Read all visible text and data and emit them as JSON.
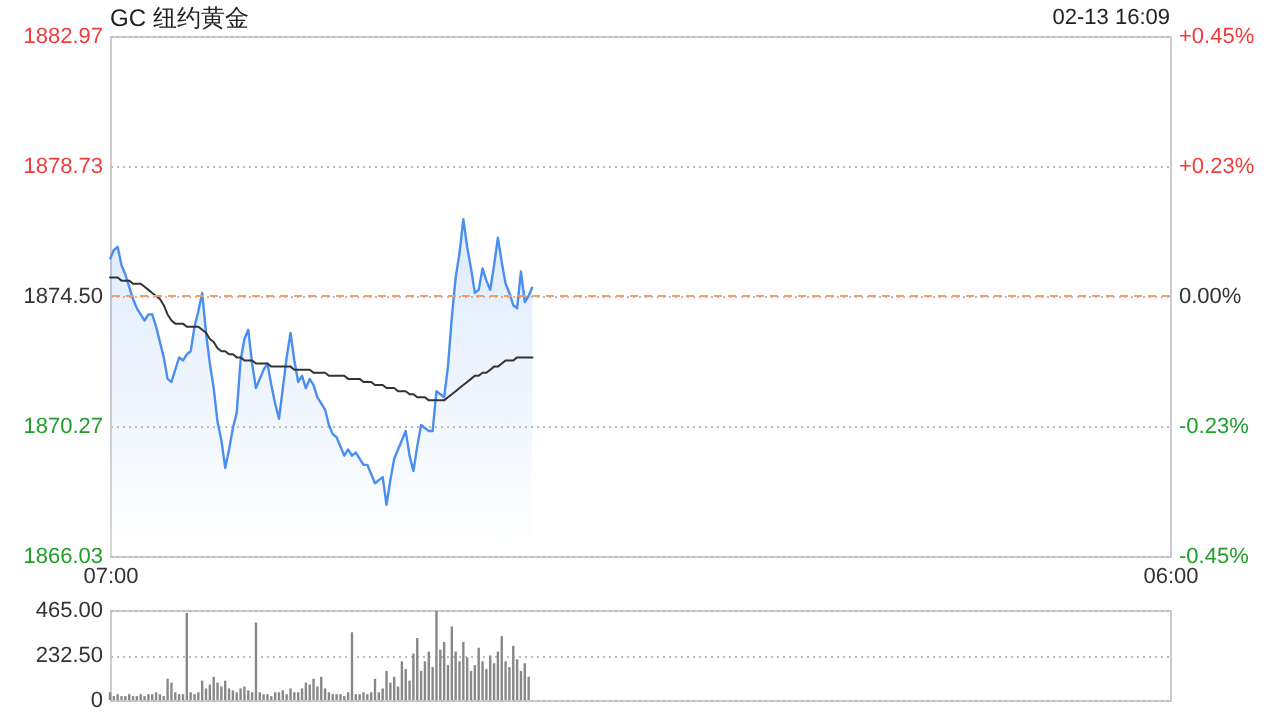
{
  "chart_data": [
    {
      "type": "area",
      "title": "GC 纽约黄金",
      "annotations": [
        "02-13 16:09"
      ],
      "categories": [
        "07:00",
        null,
        null,
        null,
        null,
        null,
        null,
        null,
        null,
        null,
        null,
        null,
        null,
        null,
        null,
        null,
        null,
        null,
        null,
        null,
        null,
        null,
        null,
        null,
        null,
        null,
        null,
        null,
        null,
        null,
        null,
        null,
        null,
        null,
        null,
        null,
        null,
        null,
        null,
        null,
        null,
        null,
        null,
        null,
        null,
        null,
        null,
        null,
        null,
        null,
        null,
        null,
        null,
        null,
        null,
        null,
        null,
        null,
        null,
        null,
        null,
        null,
        null,
        null,
        null,
        null,
        null,
        null,
        null,
        null,
        null,
        null,
        null,
        null,
        null,
        null,
        null,
        null,
        null,
        null,
        null,
        null,
        null,
        null,
        null,
        null,
        null,
        null,
        null,
        null,
        null,
        null,
        null,
        null,
        null,
        null,
        null,
        null,
        null,
        null,
        null,
        null,
        null,
        null,
        null,
        null,
        null,
        null,
        null,
        null,
        null,
        null,
        null,
        null,
        null,
        null,
        null,
        null,
        null,
        null,
        null,
        null,
        null,
        null,
        null,
        null,
        null,
        null,
        null,
        null,
        null,
        null,
        null,
        null,
        null,
        null,
        null,
        null,
        null,
        null,
        null,
        null,
        null,
        null,
        null,
        null,
        null,
        null,
        null,
        null,
        null,
        null,
        null,
        null,
        null,
        null,
        null,
        null,
        null,
        null,
        null,
        null,
        null,
        null,
        null,
        null,
        null,
        null,
        null,
        null,
        null,
        null,
        null,
        null,
        null,
        null,
        null,
        null,
        null,
        null,
        null,
        null,
        null,
        null,
        null,
        null,
        null,
        null,
        null,
        null,
        null,
        null,
        null,
        null,
        null,
        null,
        null,
        null,
        null,
        null,
        null,
        null,
        null,
        null,
        null,
        null,
        null,
        null,
        null,
        null,
        null,
        null,
        null,
        null,
        null,
        null,
        null,
        null,
        null,
        null,
        null,
        null,
        null,
        null,
        null,
        null,
        null,
        null,
        null,
        null,
        null,
        null,
        null,
        null,
        null,
        null,
        null,
        null,
        null,
        null,
        null,
        null,
        null,
        null,
        null,
        null,
        null,
        null,
        null,
        null,
        null,
        null,
        null,
        null,
        null,
        null,
        null,
        null,
        null,
        null,
        null,
        null,
        null,
        null,
        null,
        null,
        null,
        null,
        null,
        null,
        null,
        null,
        null,
        null,
        null,
        null,
        "06:00"
      ],
      "ylim": [
        1866.03,
        1882.97
      ],
      "yticks": [
        1866.03,
        1870.27,
        {
          "value": 1874.5,
          "label": "1874.50"
        },
        1878.73,
        1882.97
      ],
      "y2lim": [
        -0.45,
        0.45
      ],
      "y2ticks": [
        {
          "value": -0.45,
          "label": "-0.45%"
        },
        {
          "value": -0.225,
          "label": "-0.23%"
        },
        {
          "value": 0,
          "label": "0.00%"
        },
        {
          "value": 0.225,
          "label": "+0.23%"
        },
        {
          "value": 0.45,
          "label": "+0.45%"
        }
      ],
      "grid": "y",
      "ref_lines": [
        {
          "axis": "y2",
          "value": 0,
          "color": "#f0a070",
          "line_style": "dashed"
        }
      ],
      "series": [
        {
          "color": "#4a8ef0",
          "values": [
            1875.7,
            1876.0,
            1876.1,
            1875.5,
            1875.2,
            1874.8,
            1874.4,
            1874.1,
            1873.9,
            1873.7,
            1873.9,
            1873.9,
            1873.5,
            1873.0,
            1872.5,
            1871.8,
            1871.7,
            1872.1,
            1872.5,
            1872.4,
            1872.6,
            1872.7,
            1873.5,
            1874.0,
            1874.6,
            1873.3,
            1872.3,
            1871.5,
            1870.4,
            1869.8,
            1868.9,
            1869.5,
            1870.2,
            1870.7,
            1872.4,
            1873.1,
            1873.4,
            1872.3,
            1871.5,
            1871.8,
            1872.1,
            1872.3,
            1871.6,
            1871.0,
            1870.5,
            1871.5,
            1872.5,
            1873.3,
            1872.4,
            1871.7,
            1871.9,
            1871.5,
            1871.8,
            1871.6,
            1871.2,
            1871.0,
            1870.8,
            1870.3,
            1870.0,
            1869.9,
            1869.6,
            1869.3,
            1869.5,
            1869.3,
            1869.4,
            1869.2,
            1869.0,
            1869.0,
            1868.7,
            1868.4,
            1868.5,
            1868.6,
            1867.7,
            1868.5,
            1869.2,
            1869.5,
            1869.8,
            1870.1,
            1869.3,
            1868.8,
            1869.6,
            1870.3,
            1870.2,
            1870.1,
            1870.1,
            1871.4,
            1871.3,
            1871.2,
            1872.2,
            1873.8,
            1875.1,
            1875.9,
            1877.0,
            1876.1,
            1875.4,
            1874.6,
            1874.7,
            1875.4,
            1875.0,
            1874.7,
            1875.5,
            1876.4,
            1875.6,
            1874.9,
            1874.6,
            1874.2,
            1874.1,
            1875.3,
            1874.3,
            1874.5,
            1874.8,
            null,
            null,
            null,
            null,
            null,
            null,
            null,
            null,
            null,
            null,
            null,
            null,
            null,
            null,
            null,
            null,
            null,
            null,
            null,
            null,
            null,
            null,
            null,
            null,
            null,
            null,
            null,
            null,
            null,
            null,
            null,
            null,
            null,
            null,
            null,
            null,
            null,
            null,
            null,
            null,
            null,
            null,
            null,
            null,
            null,
            null,
            null,
            null,
            null,
            null,
            null,
            null,
            null,
            null,
            null,
            null,
            null,
            null,
            null,
            null,
            null,
            null,
            null,
            null,
            null,
            null,
            null,
            null,
            null,
            null,
            null,
            null,
            null,
            null,
            null,
            null,
            null,
            null,
            null,
            null,
            null,
            null,
            null,
            null,
            null,
            null,
            null,
            null,
            null,
            null,
            null,
            null,
            null,
            null,
            null,
            null,
            null,
            null,
            null,
            null,
            null,
            null,
            null,
            null,
            null,
            null,
            null,
            null,
            null,
            null,
            null,
            null,
            null,
            null,
            null,
            null,
            null,
            null,
            null,
            null,
            null,
            null,
            null,
            null,
            null,
            null,
            null,
            null,
            null,
            null,
            null,
            null,
            null,
            null,
            null,
            null,
            null,
            null,
            null,
            null,
            null,
            null,
            null,
            null,
            null,
            null,
            null,
            null,
            null,
            null,
            null,
            null,
            null,
            null,
            null,
            null,
            null,
            null,
            null,
            null,
            null,
            null,
            null,
            null,
            null,
            null
          ]
        },
        {
          "type": "line",
          "color": "#333333",
          "values": [
            1875.1,
            1875.1,
            1875.1,
            1875.0,
            1875.0,
            1875.0,
            1874.9,
            1874.9,
            1874.9,
            1874.8,
            1874.7,
            1874.6,
            1874.5,
            1874.4,
            1874.2,
            1873.9,
            1873.7,
            1873.6,
            1873.6,
            1873.6,
            1873.5,
            1873.5,
            1873.5,
            1873.5,
            1873.4,
            1873.3,
            1873.1,
            1873.0,
            1872.8,
            1872.7,
            1872.7,
            1872.6,
            1872.6,
            1872.5,
            1872.5,
            1872.4,
            1872.4,
            1872.4,
            1872.3,
            1872.3,
            1872.3,
            1872.3,
            1872.2,
            1872.2,
            1872.2,
            1872.2,
            1872.2,
            1872.2,
            1872.1,
            1872.1,
            1872.1,
            1872.1,
            1872.1,
            1872.0,
            1872.0,
            1872.0,
            1872.0,
            1871.9,
            1871.9,
            1871.9,
            1871.9,
            1871.9,
            1871.8,
            1871.8,
            1871.8,
            1871.8,
            1871.7,
            1871.7,
            1871.7,
            1871.6,
            1871.6,
            1871.6,
            1871.5,
            1871.5,
            1871.5,
            1871.4,
            1871.4,
            1871.4,
            1871.3,
            1871.3,
            1871.2,
            1871.2,
            1871.2,
            1871.1,
            1871.1,
            1871.1,
            1871.1,
            1871.1,
            1871.2,
            1871.3,
            1871.4,
            1871.5,
            1871.6,
            1871.7,
            1871.8,
            1871.9,
            1871.9,
            1872.0,
            1872.0,
            1872.1,
            1872.2,
            1872.2,
            1872.3,
            1872.4,
            1872.4,
            1872.4,
            1872.5,
            1872.5,
            1872.5,
            1872.5,
            1872.5,
            null,
            null,
            null,
            null,
            null,
            null,
            null,
            null,
            null,
            null,
            null,
            null,
            null,
            null,
            null,
            null,
            null,
            null,
            null,
            null,
            null,
            null,
            null,
            null,
            null,
            null,
            null,
            null,
            null,
            null,
            null,
            null,
            null,
            null,
            null,
            null,
            null,
            null,
            null,
            null,
            null,
            null,
            null,
            null,
            null,
            null,
            null,
            null,
            null,
            null,
            null,
            null,
            null,
            null,
            null,
            null,
            null,
            null,
            null,
            null,
            null,
            null,
            null,
            null,
            null,
            null,
            null,
            null,
            null,
            null,
            null,
            null,
            null,
            null,
            null,
            null,
            null,
            null,
            null,
            null,
            null,
            null,
            null,
            null,
            null,
            null,
            null,
            null,
            null,
            null,
            null,
            null,
            null,
            null,
            null,
            null,
            null,
            null,
            null,
            null,
            null,
            null,
            null,
            null,
            null,
            null,
            null,
            null,
            null,
            null,
            null,
            null,
            null,
            null,
            null,
            null,
            null,
            null,
            null,
            null,
            null,
            null,
            null,
            null,
            null,
            null,
            null,
            null,
            null,
            null,
            null,
            null,
            null,
            null,
            null,
            null,
            null,
            null,
            null,
            null,
            null,
            null,
            null,
            null,
            null,
            null,
            null,
            null,
            null,
            null,
            null,
            null,
            null,
            null,
            null,
            null,
            null,
            null,
            null,
            null,
            null,
            null,
            null,
            null,
            null,
            null
          ]
        }
      ]
    },
    {
      "type": "bar",
      "ylim": [
        0,
        465
      ],
      "yticks": [
        0,
        {
          "value": 232.5,
          "label": "232.50"
        },
        {
          "value": 465,
          "label": "465.00"
        }
      ],
      "grid": "y",
      "tick_labels": "y",
      "categories": [
        null,
        null,
        null,
        null,
        null,
        null,
        null,
        null,
        null,
        null,
        null,
        null,
        null,
        null,
        null,
        null,
        null,
        null,
        null,
        null,
        null,
        null,
        null,
        null,
        null,
        null,
        null,
        null,
        null,
        null,
        null,
        null,
        null,
        null,
        null,
        null,
        null,
        null,
        null,
        null,
        null,
        null,
        null,
        null,
        null,
        null,
        null,
        null,
        null,
        null,
        null,
        null,
        null,
        null,
        null,
        null,
        null,
        null,
        null,
        null,
        null,
        null,
        null,
        null,
        null,
        null,
        null,
        null,
        null,
        null,
        null,
        null,
        null,
        null,
        null,
        null,
        null,
        null,
        null,
        null,
        null,
        null,
        null,
        null,
        null,
        null,
        null,
        null,
        null,
        null,
        null,
        null,
        null,
        null,
        null,
        null,
        null,
        null,
        null,
        null,
        null,
        null,
        null,
        null,
        null,
        null,
        null,
        null,
        null,
        null,
        null,
        null,
        null,
        null,
        null,
        null,
        null,
        null,
        null,
        null,
        null,
        null,
        null,
        null,
        null,
        null,
        null,
        null,
        null,
        null,
        null,
        null,
        null,
        null,
        null,
        null,
        null,
        null,
        null,
        null,
        null,
        null,
        null,
        null,
        null,
        null,
        null,
        null,
        null,
        null,
        null,
        null,
        null,
        null,
        null,
        null,
        null,
        null,
        null,
        null,
        null,
        null,
        null,
        null,
        null,
        null,
        null,
        null,
        null,
        null,
        null,
        null,
        null,
        null,
        null,
        null,
        null,
        null,
        null,
        null,
        null,
        null,
        null,
        null,
        null,
        null,
        null,
        null,
        null,
        null,
        null,
        null,
        null,
        null,
        null,
        null,
        null,
        null,
        null,
        null,
        null,
        null,
        null,
        null,
        null,
        null,
        null,
        null,
        null,
        null,
        null,
        null,
        null,
        null,
        null,
        null,
        null,
        null,
        null,
        null,
        null,
        null,
        null,
        null,
        null,
        null,
        null,
        null,
        null,
        null,
        null,
        null,
        null,
        null,
        null,
        null,
        null,
        null,
        null,
        null,
        null,
        null,
        null,
        null,
        null,
        null,
        null,
        null,
        null,
        null,
        null,
        null,
        null,
        null,
        null,
        null,
        null,
        null,
        null,
        null,
        null,
        null,
        null,
        null,
        null,
        null,
        null,
        null,
        null,
        null,
        null,
        null,
        null,
        null,
        null,
        null,
        null
      ],
      "series": [
        {
          "color": "#888888",
          "values": [
            40,
            20,
            30,
            20,
            20,
            30,
            20,
            20,
            30,
            20,
            30,
            30,
            40,
            30,
            20,
            110,
            90,
            40,
            30,
            30,
            450,
            40,
            30,
            40,
            100,
            60,
            80,
            120,
            90,
            70,
            100,
            60,
            50,
            40,
            60,
            70,
            50,
            40,
            400,
            40,
            30,
            30,
            20,
            40,
            40,
            50,
            30,
            60,
            40,
            40,
            60,
            90,
            80,
            110,
            70,
            120,
            60,
            40,
            30,
            30,
            30,
            20,
            40,
            350,
            30,
            30,
            40,
            30,
            40,
            110,
            40,
            60,
            150,
            90,
            120,
            70,
            200,
            160,
            100,
            240,
            320,
            150,
            200,
            250,
            170,
            460,
            260,
            300,
            180,
            380,
            250,
            200,
            300,
            220,
            150,
            180,
            270,
            200,
            160,
            230,
            190,
            250,
            330,
            200,
            170,
            280,
            210,
            150,
            190,
            120,
            null,
            null,
            null,
            null,
            null,
            null,
            null,
            null,
            null,
            null,
            null,
            null,
            null,
            null,
            null,
            null,
            null,
            null,
            null,
            null,
            null,
            null,
            null,
            null,
            null,
            null,
            null,
            null,
            null,
            null,
            null,
            null,
            null,
            null,
            null,
            null,
            null,
            null,
            null,
            null,
            null,
            null,
            null,
            null,
            null,
            null,
            null,
            null,
            null,
            null,
            null,
            null,
            null,
            null,
            null,
            null,
            null,
            null,
            null,
            null,
            null,
            null,
            null,
            null,
            null,
            null,
            null,
            null,
            null,
            null,
            null,
            null,
            null,
            null,
            null,
            null,
            null,
            null,
            null,
            null,
            null,
            null,
            null,
            null,
            null,
            null,
            null,
            null,
            null,
            null,
            null,
            null,
            null,
            null,
            null,
            null,
            null,
            null,
            null,
            null,
            null,
            null,
            null,
            null,
            null,
            null,
            null,
            null,
            null,
            null,
            null,
            null,
            null,
            null,
            null,
            null,
            null,
            null,
            null,
            null,
            null,
            null,
            null,
            null,
            null,
            null,
            null,
            null,
            null,
            null,
            null,
            null,
            null,
            null,
            null,
            null,
            null,
            null,
            null,
            null,
            null,
            null,
            null,
            null,
            null,
            null,
            null,
            null,
            null,
            null,
            null,
            null,
            null,
            null,
            null,
            null,
            null,
            null,
            null,
            null,
            null,
            null,
            null,
            null,
            null,
            null,
            null
          ]
        }
      ]
    }
  ]
}
